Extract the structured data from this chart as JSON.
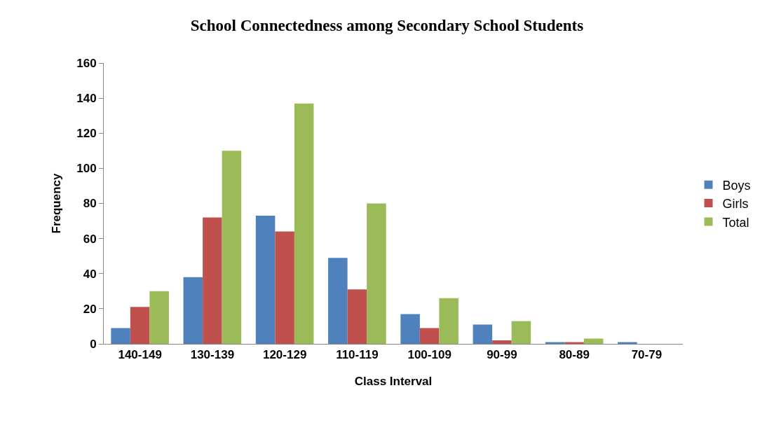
{
  "chart_data": {
    "type": "bar",
    "title": "School Connectedness among Secondary School Students",
    "xlabel": "Class Interval",
    "ylabel": "Frequency",
    "categories": [
      "140-149",
      "130-139",
      "120-129",
      "110-119",
      "100-109",
      "90-99",
      "80-89",
      "70-79"
    ],
    "series": [
      {
        "name": "Boys",
        "color": "#4f81bd",
        "values": [
          9,
          38,
          73,
          49,
          17,
          11,
          1,
          1
        ]
      },
      {
        "name": "Girls",
        "color": "#c0504d",
        "values": [
          21,
          72,
          64,
          31,
          9,
          2,
          1,
          0
        ]
      },
      {
        "name": "Total",
        "color": "#9bbb59",
        "values": [
          30,
          110,
          137,
          80,
          26,
          13,
          3,
          0
        ]
      }
    ],
    "ylim": [
      0,
      160
    ],
    "yticks": [
      0,
      20,
      40,
      60,
      80,
      100,
      120,
      140,
      160
    ],
    "grid": false,
    "legend": "right"
  }
}
